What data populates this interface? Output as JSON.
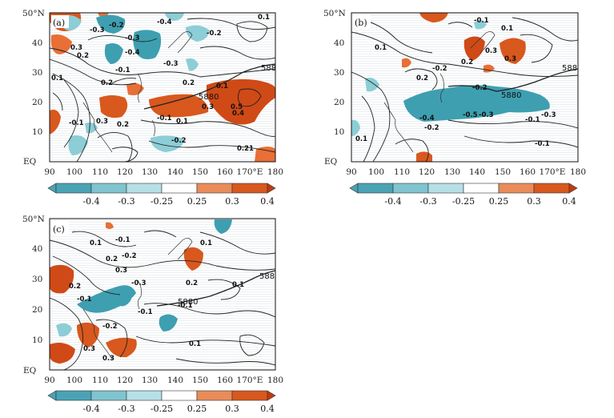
{
  "figure": {
    "panels": [
      {
        "id": "a",
        "label": "(a)",
        "lat_ticks": [
          "EQ",
          "10",
          "20",
          "30",
          "40",
          "50°N"
        ],
        "lon_ticks": [
          "90",
          "100",
          "110",
          "120",
          "130",
          "140",
          "150",
          "160",
          "170°E",
          "180"
        ],
        "ridge_label": "5880",
        "contour_labels": [
          "-0.3",
          "-0.2",
          "-0.4",
          "-0.3",
          "0.3",
          "0.2",
          "-0.2",
          "0.1",
          "0.2",
          "-0.1",
          "-0.4",
          "-0.3",
          "0.1",
          "0.5",
          "0.4",
          "0.3",
          "0.2",
          "0.1",
          "-0.2",
          "0.21",
          "-0.1",
          "0.3",
          "0.2",
          "0.1",
          "-0.1"
        ]
      },
      {
        "id": "b",
        "label": "(b)",
        "lat_ticks": [
          "EQ",
          "10",
          "20",
          "30",
          "40",
          "50°N"
        ],
        "lon_ticks": [
          "90",
          "100",
          "110",
          "120",
          "130",
          "140",
          "150",
          "160",
          "170°E",
          "180"
        ],
        "ridge_label": "5880",
        "ridge_label_2": "588",
        "contour_labels": [
          "0.1",
          "-0.1",
          "0.3",
          "0.2",
          "-0.2",
          "-0.4",
          "-0.5",
          "-0.3",
          "-0.2",
          "-0.1",
          "0.1",
          "-0.2",
          "0.2",
          "0.3",
          "-0.3",
          "-0.1",
          "0.1"
        ]
      },
      {
        "id": "c",
        "label": "(c)",
        "lat_ticks": [
          "EQ",
          "10",
          "20",
          "30",
          "40",
          "50°N"
        ],
        "lon_ticks": [
          "90",
          "100",
          "110",
          "120",
          "130",
          "140",
          "150",
          "160",
          "170°E",
          "180"
        ],
        "ridge_label": "5880",
        "ridge_label_2": "588",
        "contour_labels": [
          "0.1",
          "-0.1",
          "0.2",
          "-0.2",
          "0.3",
          "-0.3",
          "0.1",
          "-0.1",
          "0.2",
          "0.3",
          "-0.2",
          "-0.1",
          "0.1",
          "0.2",
          "0.3",
          "-0.1",
          "0.1"
        ]
      }
    ],
    "colorbar": {
      "tick_labels": [
        "-0.4",
        "-0.3",
        "-0.25",
        "0.25",
        "0.3",
        "0.4"
      ],
      "colors": [
        "#4aa3b5",
        "#7fc4cf",
        "#b6dfe6",
        "#ffffff",
        "#e98c5a",
        "#d8581e",
        "#c23a0e"
      ]
    },
    "colors": {
      "pos_strong": "#cf4a16",
      "pos_weak": "#e86f35",
      "neg_strong": "#3e9fb0",
      "neg_weak": "#8ccdd6",
      "contour": "#222222"
    }
  }
}
